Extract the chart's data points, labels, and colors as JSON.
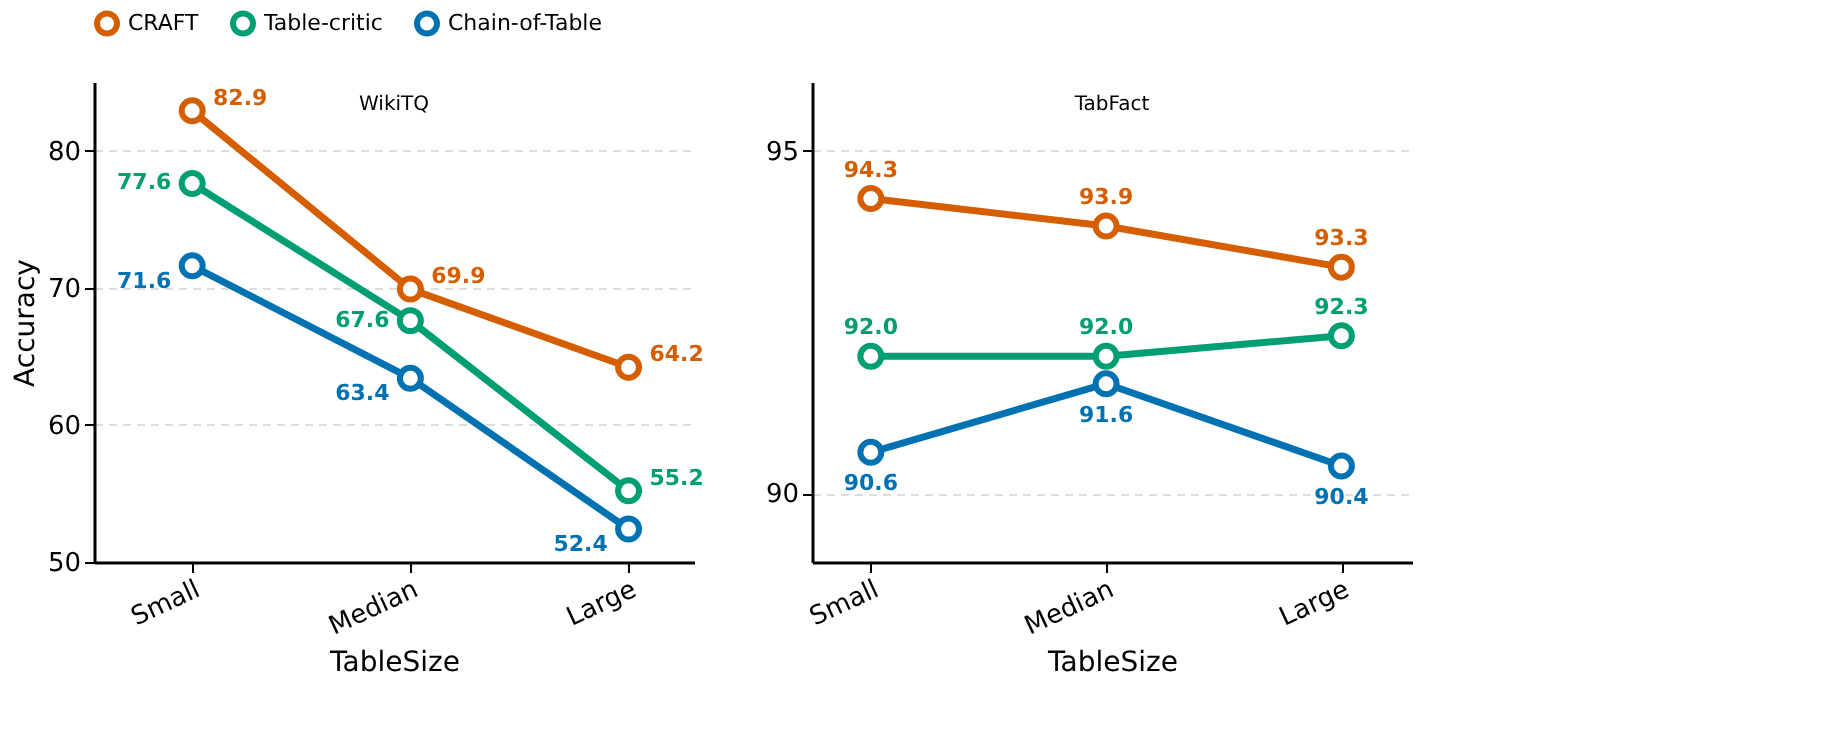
{
  "chart_data": [
    {
      "type": "line",
      "title": "WikiTQ",
      "xlabel": "TableSize",
      "ylabel": "Accuracy",
      "categories": [
        "Small",
        "Median",
        "Large"
      ],
      "series": [
        {
          "name": "CRAFT",
          "color": "#d55e00",
          "values": [
            82.9,
            69.9,
            64.2
          ],
          "value_labels": [
            "82.9",
            "69.9",
            "64.2"
          ]
        },
        {
          "name": "Table-critic",
          "color": "#009e73",
          "values": [
            77.6,
            67.6,
            55.2
          ],
          "value_labels": [
            "77.6",
            "67.6",
            "55.2"
          ]
        },
        {
          "name": "Chain-of-Table",
          "color": "#0072b2",
          "values": [
            71.6,
            63.4,
            52.4
          ],
          "value_labels": [
            "71.6",
            "63.4",
            "52.4"
          ]
        }
      ],
      "ylim": [
        50,
        85
      ],
      "yticks": [
        50,
        60,
        70,
        80
      ],
      "grid": "y",
      "legend": "top",
      "marker": "circle"
    },
    {
      "type": "line",
      "title": "TabFact",
      "xlabel": "TableSize",
      "categories": [
        "Small",
        "Median",
        "Large"
      ],
      "series": [
        {
          "name": "CRAFT",
          "color": "#d55e00",
          "values": [
            94.3,
            93.9,
            93.3
          ],
          "value_labels": [
            "94.3",
            "93.9",
            "93.3"
          ]
        },
        {
          "name": "Table-critic",
          "color": "#009e73",
          "values": [
            92.0,
            92.0,
            92.3
          ],
          "value_labels": [
            "92.0",
            "92.0",
            "92.3"
          ]
        },
        {
          "name": "Chain-of-Table",
          "color": "#0072b2",
          "values": [
            90.6,
            91.6,
            90.4
          ],
          "value_labels": [
            "90.6",
            "91.6",
            "90.4"
          ]
        }
      ],
      "ylim": [
        89,
        96
      ],
      "yticks": [
        90,
        95
      ],
      "grid": "y",
      "marker": "circle"
    }
  ]
}
